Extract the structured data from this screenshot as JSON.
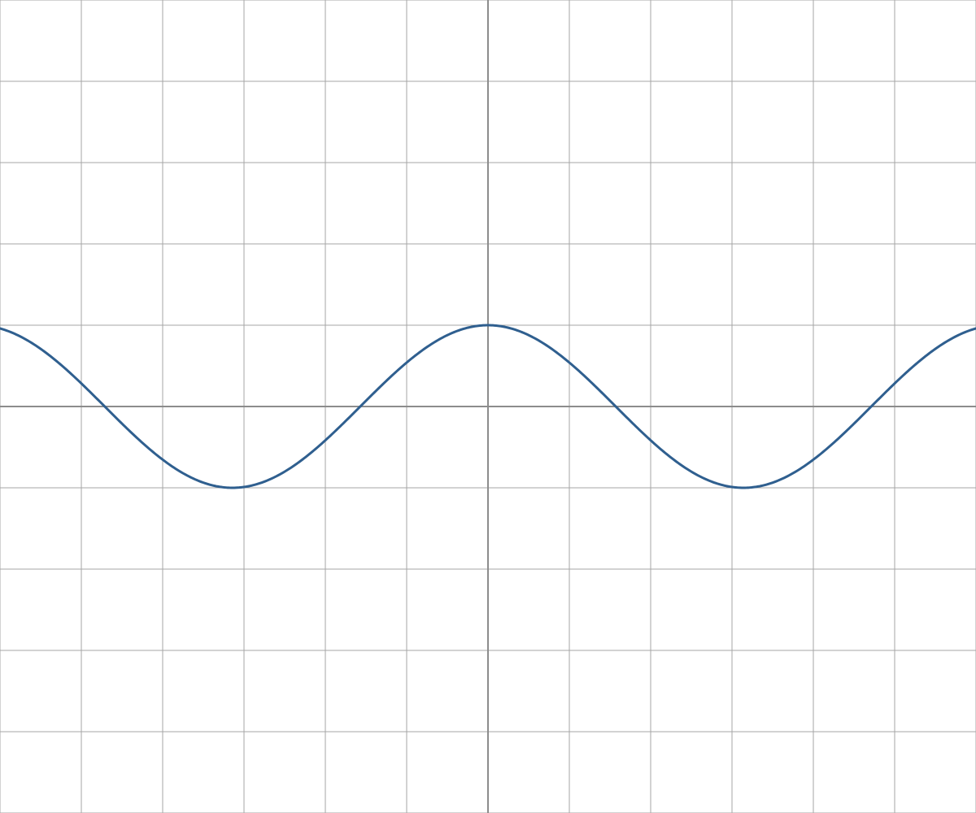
{
  "chart_data": {
    "type": "line",
    "title": "",
    "xlabel": "",
    "ylabel": "",
    "xlim": [
      -6,
      6
    ],
    "ylim": [
      -5,
      5
    ],
    "grid": true,
    "grid_step": 1,
    "axes_visible": true,
    "tick_labels_visible": false,
    "series": [
      {
        "function": "cos(x)",
        "color": "#2f5f8f",
        "x_step": 0.1
      }
    ]
  },
  "colors": {
    "background": "#ffffff",
    "grid": "#a6a6a6",
    "axis": "#8c8c8c",
    "curve": "#2f5f8f"
  }
}
